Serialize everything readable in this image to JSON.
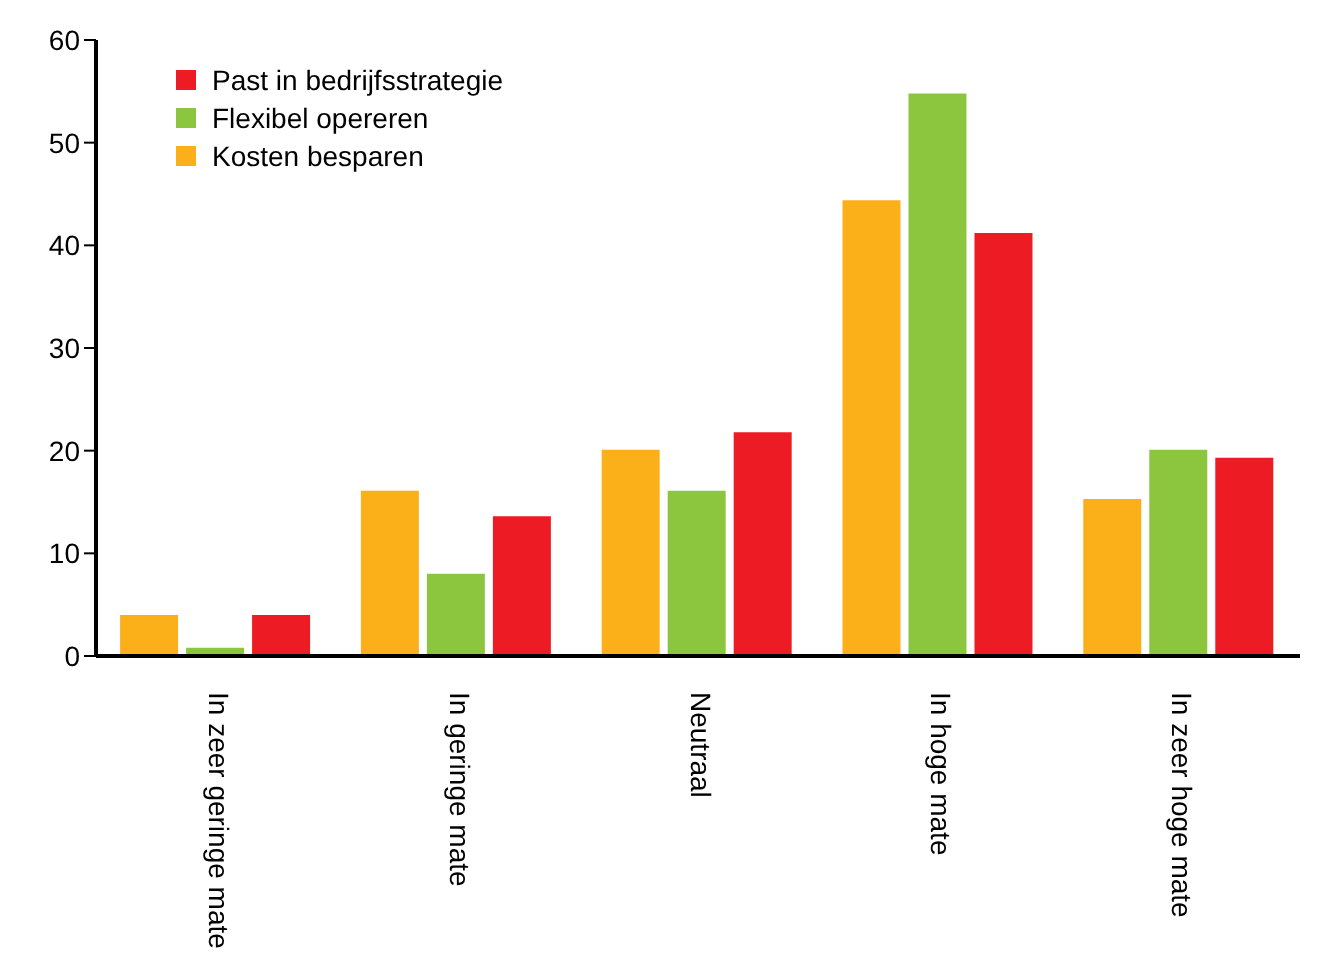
{
  "chart_data": {
    "type": "bar",
    "categories": [
      "In zeer geringe mate",
      "In geringe mate",
      "Neutraal",
      "In hoge mate",
      "In zeer hoge mate"
    ],
    "series": [
      {
        "name": "Kosten besparen",
        "color": "#fbb01a",
        "values": [
          4,
          16.1,
          20.1,
          44.4,
          15.3
        ]
      },
      {
        "name": "Flexibel opereren",
        "color": "#8cc63f",
        "values": [
          0.8,
          8,
          16.1,
          54.8,
          20.1
        ]
      },
      {
        "name": "Past in bedrijfsstrategie",
        "color": "#ed1c24",
        "values": [
          4,
          13.6,
          21.8,
          41.2,
          19.3
        ]
      }
    ],
    "ylim": [
      0,
      60
    ],
    "yticks": [
      0,
      10,
      20,
      30,
      40,
      50,
      60
    ],
    "grid": false,
    "legend": "top left"
  }
}
